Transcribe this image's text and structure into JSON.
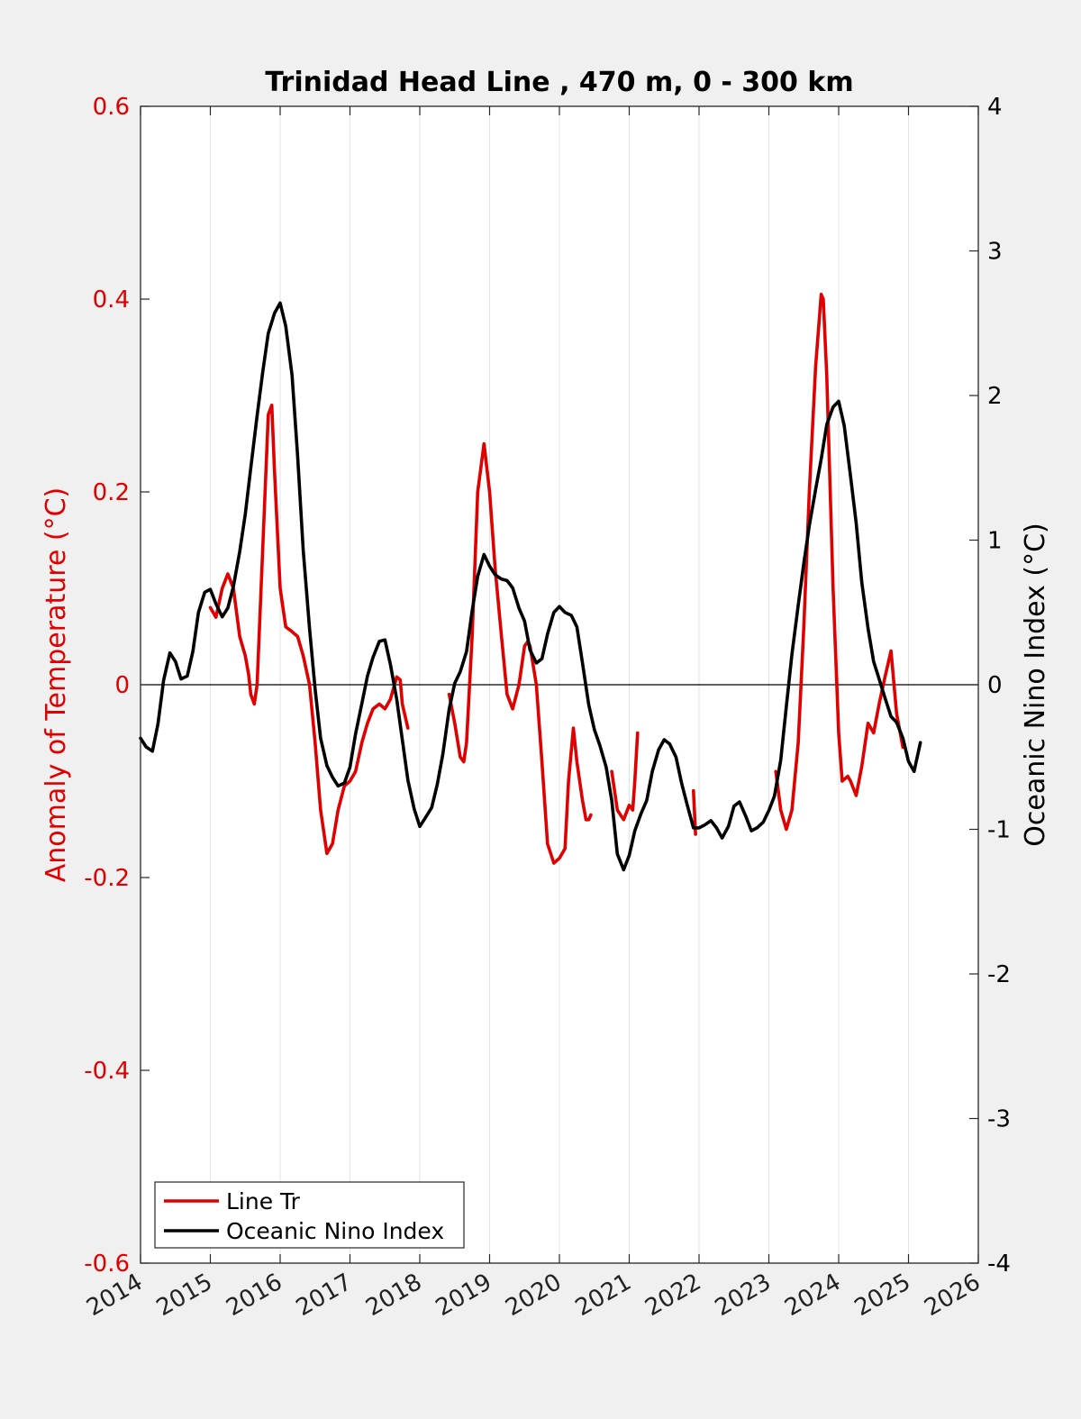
{
  "chart_data": {
    "type": "line",
    "title": "Trinidad Head Line , 470 m, 0 - 300 km",
    "ylabel_left": "Anomaly of Temperature (°C)",
    "ylabel_right": "Oceanic Nino Index (°C)",
    "xlim": [
      2014,
      2026
    ],
    "ylim_left": [
      -0.6,
      0.6
    ],
    "ylim_right": [
      -4,
      4
    ],
    "x_ticks": [
      "2014",
      "2015",
      "2016",
      "2017",
      "2018",
      "2019",
      "2020",
      "2021",
      "2022",
      "2023",
      "2024",
      "2025",
      "2026"
    ],
    "y_ticks_left": [
      "0.6",
      "0.4",
      "0.2",
      "0",
      "-0.2",
      "-0.4",
      "-0.6"
    ],
    "y_ticks_right": [
      "4",
      "3",
      "2",
      "1",
      "0",
      "-1",
      "-2",
      "-3",
      "-4"
    ],
    "grid": "vertical",
    "zero_line": true,
    "legend_position": "bottom-left",
    "colors": {
      "line_tr": "#e00000",
      "oni": "#000000"
    },
    "series": [
      {
        "name": "Line Tr",
        "axis": "left",
        "segments": [
          [
            [
              2015.0,
              0.08
            ],
            [
              2015.08,
              0.07
            ],
            [
              2015.17,
              0.1
            ],
            [
              2015.25,
              0.115
            ],
            [
              2015.33,
              0.1
            ],
            [
              2015.42,
              0.05
            ],
            [
              2015.5,
              0.03
            ],
            [
              2015.55,
              0.01
            ],
            [
              2015.58,
              -0.01
            ],
            [
              2015.63,
              -0.02
            ],
            [
              2015.67,
              0.0
            ],
            [
              2015.75,
              0.14
            ],
            [
              2015.83,
              0.28
            ],
            [
              2015.88,
              0.29
            ],
            [
              2015.92,
              0.22
            ],
            [
              2016.0,
              0.1
            ],
            [
              2016.08,
              0.06
            ],
            [
              2016.17,
              0.055
            ],
            [
              2016.25,
              0.05
            ],
            [
              2016.33,
              0.03
            ],
            [
              2016.42,
              0.0
            ],
            [
              2016.5,
              -0.06
            ],
            [
              2016.58,
              -0.13
            ],
            [
              2016.67,
              -0.175
            ],
            [
              2016.75,
              -0.165
            ],
            [
              2016.83,
              -0.13
            ],
            [
              2016.92,
              -0.105
            ],
            [
              2017.0,
              -0.1
            ],
            [
              2017.08,
              -0.09
            ],
            [
              2017.17,
              -0.06
            ],
            [
              2017.25,
              -0.04
            ],
            [
              2017.33,
              -0.025
            ],
            [
              2017.42,
              -0.02
            ],
            [
              2017.5,
              -0.025
            ],
            [
              2017.58,
              -0.015
            ],
            [
              2017.67,
              0.008
            ],
            [
              2017.72,
              0.005
            ],
            [
              2017.75,
              -0.02
            ],
            [
              2017.83,
              -0.045
            ]
          ],
          [
            [
              2018.42,
              -0.01
            ],
            [
              2018.5,
              -0.04
            ],
            [
              2018.58,
              -0.075
            ],
            [
              2018.63,
              -0.08
            ],
            [
              2018.67,
              -0.06
            ],
            [
              2018.75,
              0.05
            ],
            [
              2018.83,
              0.2
            ],
            [
              2018.92,
              0.25
            ],
            [
              2019.0,
              0.2
            ],
            [
              2019.08,
              0.12
            ],
            [
              2019.17,
              0.05
            ],
            [
              2019.25,
              -0.01
            ],
            [
              2019.33,
              -0.025
            ],
            [
              2019.42,
              0.0
            ],
            [
              2019.5,
              0.04
            ],
            [
              2019.55,
              0.045
            ],
            [
              2019.58,
              0.04
            ],
            [
              2019.67,
              0.0
            ],
            [
              2019.75,
              -0.08
            ],
            [
              2019.83,
              -0.165
            ],
            [
              2019.92,
              -0.185
            ],
            [
              2020.0,
              -0.18
            ],
            [
              2020.08,
              -0.17
            ],
            [
              2020.13,
              -0.1
            ],
            [
              2020.2,
              -0.045
            ],
            [
              2020.25,
              -0.08
            ],
            [
              2020.33,
              -0.12
            ],
            [
              2020.38,
              -0.14
            ],
            [
              2020.42,
              -0.14
            ],
            [
              2020.45,
              -0.135
            ]
          ],
          [
            [
              2020.75,
              -0.09
            ],
            [
              2020.83,
              -0.13
            ],
            [
              2020.92,
              -0.14
            ],
            [
              2021.0,
              -0.125
            ],
            [
              2021.05,
              -0.13
            ],
            [
              2021.08,
              -0.1
            ],
            [
              2021.12,
              -0.05
            ]
          ],
          [
            [
              2021.92,
              -0.11
            ],
            [
              2021.95,
              -0.155
            ]
          ],
          [
            [
              2023.1,
              -0.09
            ],
            [
              2023.17,
              -0.13
            ],
            [
              2023.25,
              -0.15
            ],
            [
              2023.33,
              -0.13
            ],
            [
              2023.42,
              -0.06
            ],
            [
              2023.5,
              0.06
            ],
            [
              2023.58,
              0.2
            ],
            [
              2023.67,
              0.33
            ],
            [
              2023.75,
              0.405
            ],
            [
              2023.78,
              0.4
            ],
            [
              2023.83,
              0.32
            ],
            [
              2023.92,
              0.1
            ],
            [
              2024.0,
              -0.05
            ],
            [
              2024.05,
              -0.1
            ],
            [
              2024.13,
              -0.095
            ],
            [
              2024.17,
              -0.1
            ],
            [
              2024.25,
              -0.115
            ],
            [
              2024.33,
              -0.085
            ],
            [
              2024.42,
              -0.04
            ],
            [
              2024.5,
              -0.05
            ],
            [
              2024.58,
              -0.02
            ],
            [
              2024.67,
              0.01
            ],
            [
              2024.75,
              0.035
            ],
            [
              2024.83,
              -0.03
            ],
            [
              2024.92,
              -0.065
            ]
          ]
        ]
      },
      {
        "name": "Oceanic Nino Index",
        "axis": "right",
        "segments": [
          [
            [
              2014.0,
              -0.37
            ],
            [
              2014.08,
              -0.43
            ],
            [
              2014.17,
              -0.46
            ],
            [
              2014.25,
              -0.27
            ],
            [
              2014.33,
              0.03
            ],
            [
              2014.42,
              0.22
            ],
            [
              2014.5,
              0.16
            ],
            [
              2014.58,
              0.04
            ],
            [
              2014.67,
              0.06
            ],
            [
              2014.75,
              0.23
            ],
            [
              2014.83,
              0.5
            ],
            [
              2014.92,
              0.64
            ],
            [
              2015.0,
              0.66
            ],
            [
              2015.08,
              0.56
            ],
            [
              2015.17,
              0.47
            ],
            [
              2015.25,
              0.53
            ],
            [
              2015.33,
              0.68
            ],
            [
              2015.42,
              0.92
            ],
            [
              2015.5,
              1.18
            ],
            [
              2015.58,
              1.5
            ],
            [
              2015.67,
              1.86
            ],
            [
              2015.75,
              2.16
            ],
            [
              2015.83,
              2.43
            ],
            [
              2015.92,
              2.57
            ],
            [
              2016.0,
              2.64
            ],
            [
              2016.08,
              2.48
            ],
            [
              2016.17,
              2.14
            ],
            [
              2016.25,
              1.58
            ],
            [
              2016.33,
              0.93
            ],
            [
              2016.42,
              0.39
            ],
            [
              2016.5,
              -0.03
            ],
            [
              2016.58,
              -0.37
            ],
            [
              2016.67,
              -0.56
            ],
            [
              2016.75,
              -0.64
            ],
            [
              2016.83,
              -0.7
            ],
            [
              2016.92,
              -0.68
            ],
            [
              2017.0,
              -0.57
            ],
            [
              2017.08,
              -0.34
            ],
            [
              2017.17,
              -0.13
            ],
            [
              2017.25,
              0.06
            ],
            [
              2017.33,
              0.19
            ],
            [
              2017.42,
              0.3
            ],
            [
              2017.5,
              0.31
            ],
            [
              2017.58,
              0.14
            ],
            [
              2017.67,
              -0.1
            ],
            [
              2017.75,
              -0.38
            ],
            [
              2017.83,
              -0.66
            ],
            [
              2017.92,
              -0.86
            ],
            [
              2018.0,
              -0.98
            ],
            [
              2018.08,
              -0.92
            ],
            [
              2018.17,
              -0.85
            ],
            [
              2018.25,
              -0.69
            ],
            [
              2018.33,
              -0.48
            ],
            [
              2018.42,
              -0.17
            ],
            [
              2018.5,
              0.01
            ],
            [
              2018.58,
              0.09
            ],
            [
              2018.67,
              0.23
            ],
            [
              2018.75,
              0.51
            ],
            [
              2018.83,
              0.75
            ],
            [
              2018.92,
              0.9
            ],
            [
              2019.0,
              0.82
            ],
            [
              2019.08,
              0.76
            ],
            [
              2019.17,
              0.73
            ],
            [
              2019.25,
              0.72
            ],
            [
              2019.33,
              0.67
            ],
            [
              2019.42,
              0.53
            ],
            [
              2019.5,
              0.44
            ],
            [
              2019.58,
              0.24
            ],
            [
              2019.67,
              0.15
            ],
            [
              2019.75,
              0.18
            ],
            [
              2019.83,
              0.35
            ],
            [
              2019.92,
              0.5
            ],
            [
              2020.0,
              0.54
            ],
            [
              2020.08,
              0.5
            ],
            [
              2020.17,
              0.48
            ],
            [
              2020.25,
              0.4
            ],
            [
              2020.33,
              0.15
            ],
            [
              2020.42,
              -0.14
            ],
            [
              2020.5,
              -0.31
            ],
            [
              2020.58,
              -0.42
            ],
            [
              2020.67,
              -0.57
            ],
            [
              2020.75,
              -0.8
            ],
            [
              2020.83,
              -1.17
            ],
            [
              2020.92,
              -1.28
            ],
            [
              2021.0,
              -1.18
            ],
            [
              2021.08,
              -1.01
            ],
            [
              2021.17,
              -0.89
            ],
            [
              2021.25,
              -0.8
            ],
            [
              2021.33,
              -0.6
            ],
            [
              2021.42,
              -0.45
            ],
            [
              2021.5,
              -0.38
            ],
            [
              2021.58,
              -0.41
            ],
            [
              2021.67,
              -0.5
            ],
            [
              2021.75,
              -0.68
            ],
            [
              2021.83,
              -0.83
            ],
            [
              2021.92,
              -0.99
            ],
            [
              2022.0,
              -0.99
            ],
            [
              2022.08,
              -0.97
            ],
            [
              2022.17,
              -0.94
            ],
            [
              2022.25,
              -0.99
            ],
            [
              2022.33,
              -1.06
            ],
            [
              2022.42,
              -0.98
            ],
            [
              2022.5,
              -0.84
            ],
            [
              2022.58,
              -0.81
            ],
            [
              2022.67,
              -0.91
            ],
            [
              2022.75,
              -1.01
            ],
            [
              2022.83,
              -0.99
            ],
            [
              2022.92,
              -0.95
            ],
            [
              2023.0,
              -0.87
            ],
            [
              2023.08,
              -0.77
            ],
            [
              2023.17,
              -0.52
            ],
            [
              2023.25,
              -0.15
            ],
            [
              2023.33,
              0.21
            ],
            [
              2023.42,
              0.55
            ],
            [
              2023.5,
              0.84
            ],
            [
              2023.58,
              1.1
            ],
            [
              2023.67,
              1.35
            ],
            [
              2023.75,
              1.56
            ],
            [
              2023.83,
              1.8
            ],
            [
              2023.92,
              1.92
            ],
            [
              2024.0,
              1.96
            ],
            [
              2024.08,
              1.79
            ],
            [
              2024.17,
              1.44
            ],
            [
              2024.25,
              1.12
            ],
            [
              2024.33,
              0.71
            ],
            [
              2024.42,
              0.39
            ],
            [
              2024.5,
              0.16
            ],
            [
              2024.58,
              0.04
            ],
            [
              2024.67,
              -0.1
            ],
            [
              2024.75,
              -0.22
            ],
            [
              2024.83,
              -0.26
            ],
            [
              2024.92,
              -0.37
            ],
            [
              2025.0,
              -0.53
            ],
            [
              2025.08,
              -0.6
            ],
            [
              2025.17,
              -0.4
            ]
          ]
        ]
      }
    ]
  }
}
